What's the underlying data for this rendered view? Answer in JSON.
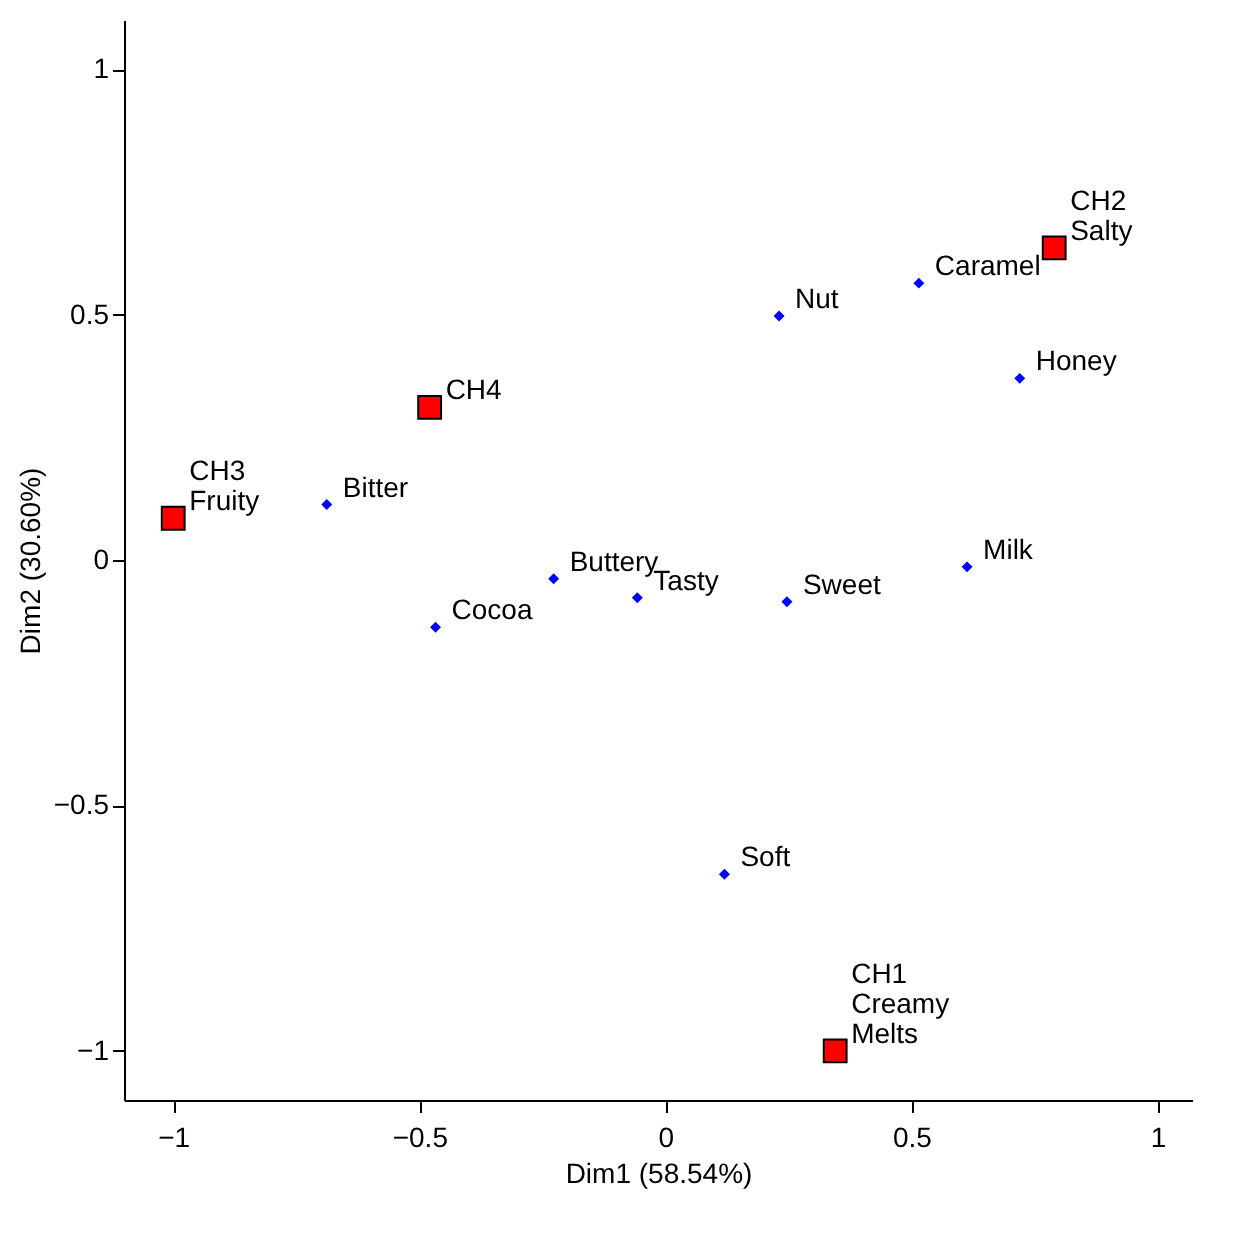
{
  "chart_data": {
    "type": "scatter",
    "xlabel": "Dim1 (58.54%)",
    "ylabel": "Dim2 (30.60%)",
    "xlim": [
      -1.1,
      1.07
    ],
    "ylim": [
      -1.1,
      1.1
    ],
    "xticks": [
      -1,
      -0.5,
      0,
      0.5,
      1
    ],
    "yticks": [
      -1,
      -0.5,
      0,
      0.5,
      1
    ],
    "grid": false,
    "series": [
      {
        "color": "#0000ff",
        "marker": "diamond",
        "x": [
          -0.688,
          -0.467,
          -0.227,
          -0.057,
          0.247,
          0.613,
          0.231,
          0.515,
          0.72,
          0.12
        ],
        "values": [
          0.113,
          -0.137,
          -0.038,
          -0.077,
          -0.085,
          -0.014,
          0.497,
          0.564,
          0.37,
          -0.64
        ]
      },
      {
        "color": "#ff0000",
        "marker": "square",
        "x": [
          -1,
          -0.479,
          0.79,
          0.345
        ],
        "values": [
          0.085,
          0.311,
          0.636,
          -1.0
        ]
      }
    ],
    "annotations": [
      {
        "text": "Bitter",
        "x": -0.688,
        "y": 0.113
      },
      {
        "text": "Cocoa",
        "x": -0.467,
        "y": -0.137
      },
      {
        "text": "Buttery",
        "x": -0.227,
        "y": -0.038
      },
      {
        "text": "Tasty",
        "x": -0.057,
        "y": -0.077
      },
      {
        "text": "Sweet",
        "x": 0.247,
        "y": -0.085
      },
      {
        "text": "Milk",
        "x": 0.613,
        "y": -0.014
      },
      {
        "text": "Nut",
        "x": 0.231,
        "y": 0.497
      },
      {
        "text": "Caramel",
        "x": 0.515,
        "y": 0.564
      },
      {
        "text": "Honey",
        "x": 0.72,
        "y": 0.37
      },
      {
        "text": "Soft",
        "x": 0.12,
        "y": -0.64
      },
      {
        "text": "Fruity",
        "x": -1,
        "y": 0.085
      },
      {
        "text": "CH3",
        "x": -1,
        "y": 0.085
      },
      {
        "text": "CH4",
        "x": -0.479,
        "y": 0.311
      },
      {
        "text": "Salty",
        "x": 0.79,
        "y": 0.636
      },
      {
        "text": "CH2",
        "x": 0.79,
        "y": 0.636
      },
      {
        "text": "Melts",
        "x": 0.345,
        "y": -1.0
      },
      {
        "text": "Creamy",
        "x": 0.345,
        "y": -1.0
      },
      {
        "text": "CH1",
        "x": 0.345,
        "y": -1.0
      }
    ]
  }
}
